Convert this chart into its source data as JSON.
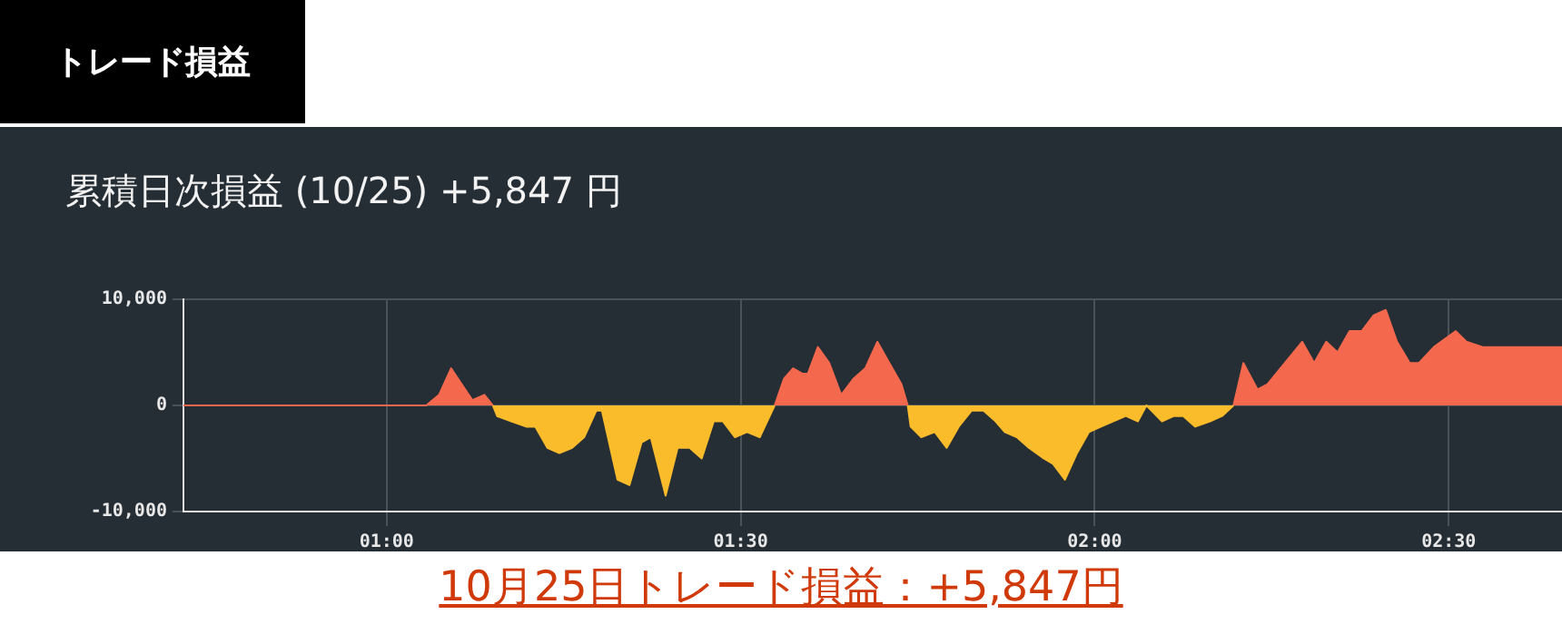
{
  "chart_data": {
    "type": "area",
    "title": "トレード損益",
    "subtitle": "累積日次損益 (10/25) +5,847 円",
    "annotations": [
      "10月25日トレード損益：+5,847円"
    ],
    "x": [
      0.713,
      1.056,
      1.074,
      1.091,
      1.121,
      1.138,
      1.144,
      1.15,
      1.156,
      1.176,
      1.197,
      1.21,
      1.227,
      1.244,
      1.262,
      1.279,
      1.296,
      1.304,
      1.326,
      1.343,
      1.36,
      1.373,
      1.394,
      1.411,
      1.428,
      1.445,
      1.462,
      1.475,
      1.492,
      1.509,
      1.527,
      1.548,
      1.561,
      1.574,
      1.587,
      1.595,
      1.609,
      1.625,
      1.642,
      1.659,
      1.676,
      1.693,
      1.71,
      1.727,
      1.736,
      1.74,
      1.755,
      1.774,
      1.791,
      1.808,
      1.826,
      1.843,
      1.86,
      1.873,
      1.89,
      1.907,
      1.928,
      1.941,
      1.958,
      1.975,
      1.992,
      2.009,
      2.044,
      2.061,
      2.073,
      2.095,
      2.112,
      2.125,
      2.142,
      2.163,
      2.18,
      2.196,
      2.21,
      2.23,
      2.244,
      2.293,
      2.31,
      2.327,
      2.343,
      2.36,
      2.377,
      2.394,
      2.411,
      2.427,
      2.445,
      2.458,
      2.479,
      2.51,
      2.525,
      2.548,
      2.66
    ],
    "series": [
      {
        "color": "#f4694e",
        "values": [
          0,
          0,
          1000,
          3500,
          500,
          1000,
          500,
          0,
          null,
          null,
          null,
          null,
          null,
          null,
          null,
          null,
          null,
          null,
          null,
          null,
          null,
          null,
          null,
          null,
          null,
          null,
          null,
          null,
          null,
          null,
          null,
          0,
          2500,
          3500,
          3000,
          3000,
          5500,
          4000,
          1000,
          2500,
          3500,
          6000,
          4000,
          2000,
          0,
          null,
          null,
          null,
          null,
          null,
          null,
          null,
          null,
          null,
          null,
          null,
          null,
          null,
          null,
          null,
          null,
          null,
          null,
          null,
          null,
          null,
          null,
          null,
          null,
          null,
          null,
          0,
          4000,
          1500,
          2000,
          6000,
          4000,
          6000,
          5000,
          7000,
          7000,
          8500,
          9000,
          6000,
          4000,
          4000,
          5500,
          7000,
          6000,
          5500,
          5500
        ]
      },
      {
        "color": "#fbbc2b",
        "values": [
          null,
          null,
          null,
          null,
          null,
          null,
          null,
          0,
          -1000,
          -1500,
          -2000,
          -2000,
          -4000,
          -4500,
          -4000,
          -3000,
          -500,
          -500,
          -7000,
          -7500,
          -3500,
          -3000,
          -8500,
          -4000,
          -4000,
          -5000,
          -1500,
          -1500,
          -3000,
          -2500,
          -3000,
          0,
          null,
          null,
          null,
          null,
          null,
          null,
          null,
          null,
          null,
          null,
          null,
          null,
          0,
          -2000,
          -3000,
          -2500,
          -4000,
          -2000,
          -500,
          -500,
          -1500,
          -2500,
          -3000,
          -4000,
          -5000,
          -5500,
          -7000,
          -4500,
          -2500,
          -2000,
          -1000,
          -1500,
          0,
          -1500,
          -1000,
          -1000,
          -2000,
          -1500,
          -1000,
          0,
          null,
          null,
          null,
          null,
          null,
          null,
          null,
          null,
          null,
          null,
          null,
          null,
          null,
          null,
          null,
          null,
          null,
          null,
          null
        ]
      }
    ],
    "xlim": [
      0.713,
      2.66
    ],
    "xticks": [
      {
        "value": 1,
        "label": "01:00"
      },
      {
        "value": 1.5,
        "label": "01:30"
      },
      {
        "value": 2,
        "label": "02:00"
      },
      {
        "value": 2.5,
        "label": "02:30"
      }
    ],
    "ylim": [
      -10000,
      10000
    ],
    "yticks": [
      {
        "value": -10000,
        "label": "-10,000"
      },
      0,
      {
        "value": 10000,
        "label": "10,000"
      }
    ],
    "grid": true,
    "legend": false,
    "marker": "none",
    "line_style": "solid"
  }
}
